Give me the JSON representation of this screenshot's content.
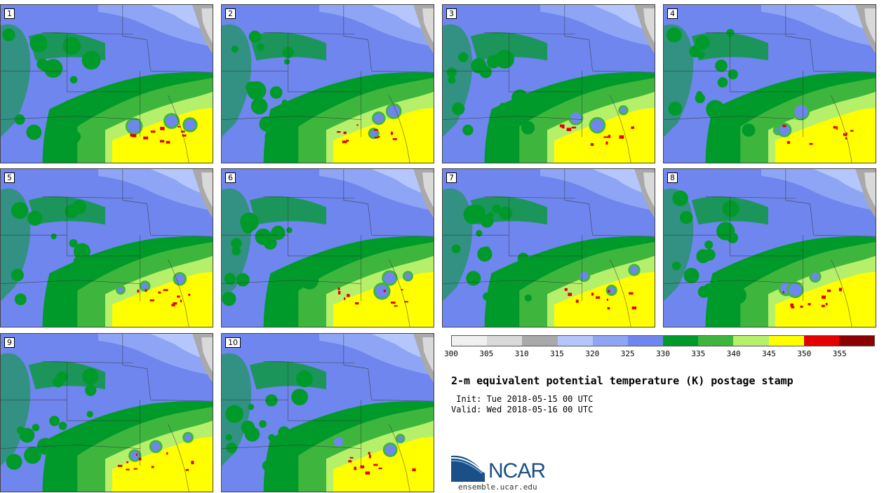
{
  "panels": [
    {
      "label": "1"
    },
    {
      "label": "2"
    },
    {
      "label": "3"
    },
    {
      "label": "4"
    },
    {
      "label": "5"
    },
    {
      "label": "6"
    },
    {
      "label": "7"
    },
    {
      "label": "8"
    },
    {
      "label": "9"
    },
    {
      "label": "10"
    }
  ],
  "colorbar": {
    "ticks": [
      "300",
      "305",
      "310",
      "315",
      "320",
      "325",
      "330",
      "335",
      "340",
      "345",
      "350",
      "355"
    ],
    "colors": [
      "#f0f0f0",
      "#d9d9d9",
      "#a9a9a9",
      "#b4c6fb",
      "#8ea5f5",
      "#6f86ee",
      "#009a2a",
      "#3eb63e",
      "#b6f06a",
      "#ffff00",
      "#e50000",
      "#8b0000"
    ]
  },
  "title": "2-m equivalent potential temperature (K) postage stamp",
  "init": " Init: Tue 2018-05-15 00 UTC",
  "valid": "Valid: Wed 2018-05-16 00 UTC",
  "logo": {
    "text": "NCAR",
    "url": "ensemble.ucar.edu"
  }
}
